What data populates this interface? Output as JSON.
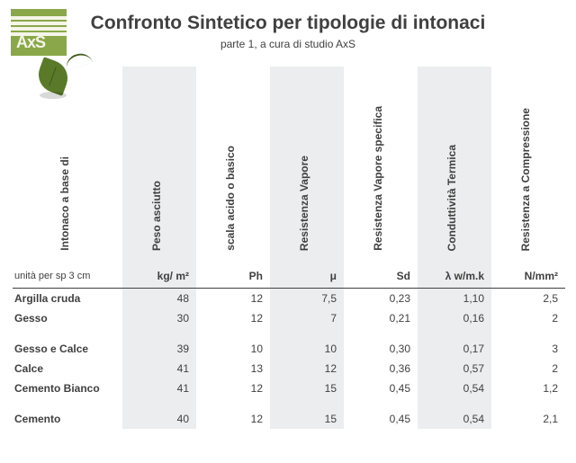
{
  "header": {
    "title": "Confronto Sintetico per tipologie di intonaci",
    "subtitle": "parte 1,  a cura di studio AxS"
  },
  "logo": {
    "text": "AxS"
  },
  "table": {
    "rowHeaderLabel": "Intonaco a base di",
    "unitRowLabel": "unità per sp 3 cm",
    "columns": [
      {
        "label": "Peso asciutto",
        "unit": "kg/ m²",
        "shaded": true
      },
      {
        "label": "scala acido o basico",
        "unit": "Ph",
        "shaded": false
      },
      {
        "label": "Resistenza Vapore",
        "unit": "μ",
        "shaded": true
      },
      {
        "label": "Resistenza Vapore specifica",
        "unit": "Sd",
        "shaded": false
      },
      {
        "label": "Conduttività  Termica",
        "unit": "λ w/m.k",
        "shaded": true
      },
      {
        "label": "Resistenza a Compressione",
        "unit": "N/mm²",
        "shaded": false
      }
    ],
    "rows": [
      {
        "name": "Argilla cruda",
        "values": [
          "48",
          "12",
          "7,5",
          "0,23",
          "1,10",
          "2,5"
        ],
        "gap": false
      },
      {
        "name": "Gesso",
        "values": [
          "30",
          "12",
          "7",
          "0,21",
          "0,16",
          "2"
        ],
        "gap": false
      },
      {
        "name": "Gesso e Calce",
        "values": [
          "39",
          "10",
          "10",
          "0,30",
          "0,17",
          "3"
        ],
        "gap": true
      },
      {
        "name": "Calce",
        "values": [
          "41",
          "13",
          "12",
          "0,36",
          "0,57",
          "2"
        ],
        "gap": false
      },
      {
        "name": "Cemento Bianco",
        "values": [
          "41",
          "12",
          "15",
          "0,45",
          "0,54",
          "1,2"
        ],
        "gap": false
      },
      {
        "name": "Cemento",
        "values": [
          "40",
          "12",
          "15",
          "0,45",
          "0,54",
          "2,1"
        ],
        "gap": true
      }
    ]
  }
}
